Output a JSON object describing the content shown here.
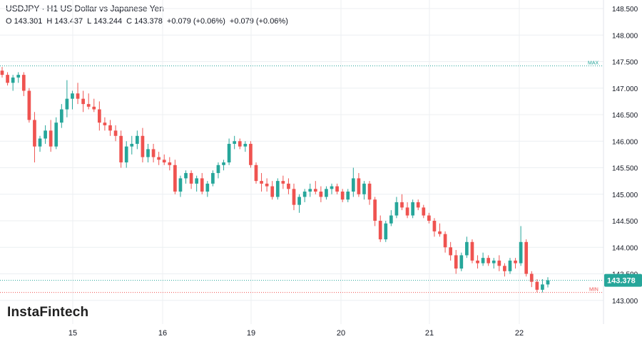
{
  "header": {
    "title": "USDJPY · H1 US Dollar vs Japanese Yen",
    "ohlc": {
      "o_label": "O",
      "o_value": "143.301",
      "h_label": "H",
      "h_value": "143.437",
      "l_label": "L",
      "l_value": "143.244",
      "c_label": "C",
      "c_value": "143.378",
      "change1": "+0.079 (+0.06%)",
      "change2": "+0.079 (+0.06%)"
    }
  },
  "branding": {
    "logo_text": "InstaFintech"
  },
  "colors": {
    "up": "#26a69a",
    "down": "#ef5350",
    "grid": "#eceff2",
    "max_line": "#26a69a",
    "min_line": "#ef5350",
    "price_tag": "#26a69a",
    "axis_text": "#131722"
  },
  "chart_data": {
    "type": "candlestick",
    "symbol": "USDJPY",
    "timeframe": "H1",
    "y_ticks": [
      "143.000",
      "143.500",
      "144.000",
      "144.500",
      "145.000",
      "145.500",
      "146.000",
      "146.500",
      "147.000",
      "147.500",
      "148.000",
      "148.500"
    ],
    "ylim": [
      142.95,
      148.6
    ],
    "x_ticks": [
      "15",
      "16",
      "19",
      "20",
      "21",
      "22"
    ],
    "last_price": "143.378",
    "max_label": "MAX",
    "max_value": 147.42,
    "min_label": "MIN",
    "min_value": 143.15,
    "grid": true,
    "candles_note": "O,H,L,C hourly, approximated from visual",
    "candles": [
      [
        147.33,
        147.4,
        147.2,
        147.25
      ],
      [
        147.25,
        147.3,
        147.05,
        147.1
      ],
      [
        147.1,
        147.25,
        146.95,
        147.2
      ],
      [
        147.2,
        147.3,
        147.1,
        147.25
      ],
      [
        147.25,
        147.3,
        146.85,
        146.95
      ],
      [
        146.95,
        147.0,
        146.35,
        146.4
      ],
      [
        146.4,
        146.55,
        145.6,
        145.9
      ],
      [
        145.9,
        146.1,
        145.8,
        146.05
      ],
      [
        146.05,
        146.3,
        145.95,
        146.2
      ],
      [
        146.2,
        146.4,
        145.8,
        145.9
      ],
      [
        145.9,
        146.45,
        145.85,
        146.35
      ],
      [
        146.35,
        146.7,
        146.25,
        146.6
      ],
      [
        146.6,
        147.15,
        146.45,
        146.8
      ],
      [
        146.8,
        146.95,
        146.6,
        146.9
      ],
      [
        146.9,
        147.1,
        146.7,
        146.8
      ],
      [
        146.8,
        146.95,
        146.55,
        146.7
      ],
      [
        146.7,
        146.9,
        146.6,
        146.65
      ],
      [
        146.65,
        146.8,
        146.55,
        146.6
      ],
      [
        146.6,
        146.75,
        146.2,
        146.35
      ],
      [
        146.35,
        146.45,
        146.2,
        146.3
      ],
      [
        146.3,
        146.4,
        146.1,
        146.2
      ],
      [
        146.2,
        146.3,
        146.0,
        146.1
      ],
      [
        146.1,
        146.2,
        145.5,
        145.6
      ],
      [
        145.6,
        146.0,
        145.5,
        145.9
      ],
      [
        145.9,
        146.1,
        145.75,
        145.95
      ],
      [
        145.95,
        146.2,
        145.85,
        146.1
      ],
      [
        146.1,
        146.25,
        145.6,
        145.7
      ],
      [
        145.7,
        145.95,
        145.6,
        145.85
      ],
      [
        145.85,
        145.95,
        145.6,
        145.7
      ],
      [
        145.7,
        145.8,
        145.55,
        145.65
      ],
      [
        145.65,
        145.75,
        145.55,
        145.6
      ],
      [
        145.6,
        145.7,
        145.45,
        145.55
      ],
      [
        145.55,
        145.65,
        145.0,
        145.05
      ],
      [
        145.05,
        145.35,
        144.95,
        145.3
      ],
      [
        145.3,
        145.45,
        145.2,
        145.4
      ],
      [
        145.4,
        145.45,
        145.1,
        145.2
      ],
      [
        145.2,
        145.35,
        145.05,
        145.3
      ],
      [
        145.3,
        145.4,
        145.0,
        145.05
      ],
      [
        145.05,
        145.25,
        144.95,
        145.2
      ],
      [
        145.2,
        145.45,
        145.15,
        145.4
      ],
      [
        145.4,
        145.6,
        145.3,
        145.55
      ],
      [
        145.55,
        145.65,
        145.45,
        145.6
      ],
      [
        145.6,
        146.05,
        145.55,
        145.95
      ],
      [
        145.95,
        146.1,
        145.85,
        146.0
      ],
      [
        146.0,
        146.05,
        145.85,
        145.9
      ],
      [
        145.9,
        146.0,
        145.8,
        145.95
      ],
      [
        145.95,
        146.0,
        145.5,
        145.55
      ],
      [
        145.55,
        145.6,
        145.2,
        145.25
      ],
      [
        145.25,
        145.4,
        145.05,
        145.2
      ],
      [
        145.2,
        145.3,
        145.05,
        145.15
      ],
      [
        145.15,
        145.25,
        144.9,
        144.95
      ],
      [
        144.95,
        145.3,
        144.9,
        145.25
      ],
      [
        145.25,
        145.35,
        145.1,
        145.2
      ],
      [
        145.2,
        145.3,
        145.0,
        145.1
      ],
      [
        145.1,
        145.2,
        144.7,
        144.8
      ],
      [
        144.8,
        145.0,
        144.65,
        144.95
      ],
      [
        144.95,
        145.1,
        144.85,
        145.05
      ],
      [
        145.05,
        145.2,
        144.95,
        145.1
      ],
      [
        145.1,
        145.25,
        145.0,
        145.05
      ],
      [
        145.05,
        145.15,
        144.85,
        144.95
      ],
      [
        144.95,
        145.15,
        144.9,
        145.1
      ],
      [
        145.1,
        145.2,
        145.0,
        145.15
      ],
      [
        145.15,
        145.2,
        145.0,
        145.05
      ],
      [
        145.05,
        145.1,
        144.85,
        144.9
      ],
      [
        144.9,
        145.1,
        144.85,
        145.05
      ],
      [
        145.05,
        145.5,
        144.95,
        145.3
      ],
      [
        145.3,
        145.4,
        144.95,
        145.0
      ],
      [
        145.0,
        145.25,
        144.9,
        145.2
      ],
      [
        145.2,
        145.25,
        144.8,
        144.9
      ],
      [
        144.9,
        144.95,
        144.4,
        144.5
      ],
      [
        144.5,
        144.6,
        144.1,
        144.15
      ],
      [
        144.15,
        144.5,
        144.1,
        144.45
      ],
      [
        144.45,
        144.7,
        144.4,
        144.6
      ],
      [
        144.6,
        144.95,
        144.55,
        144.85
      ],
      [
        144.85,
        145.0,
        144.7,
        144.75
      ],
      [
        144.75,
        144.85,
        144.55,
        144.6
      ],
      [
        144.6,
        144.9,
        144.55,
        144.85
      ],
      [
        144.85,
        144.9,
        144.7,
        144.75
      ],
      [
        144.75,
        144.8,
        144.55,
        144.6
      ],
      [
        144.6,
        144.65,
        144.45,
        144.5
      ],
      [
        144.5,
        144.55,
        144.2,
        144.3
      ],
      [
        144.3,
        144.45,
        144.2,
        144.25
      ],
      [
        144.25,
        144.3,
        143.9,
        144.0
      ],
      [
        144.0,
        144.1,
        143.75,
        143.85
      ],
      [
        143.85,
        143.95,
        143.5,
        143.6
      ],
      [
        143.6,
        143.9,
        143.55,
        143.85
      ],
      [
        143.85,
        144.2,
        143.8,
        144.1
      ],
      [
        144.1,
        144.15,
        143.7,
        143.75
      ],
      [
        143.75,
        143.85,
        143.6,
        143.7
      ],
      [
        143.7,
        143.9,
        143.65,
        143.8
      ],
      [
        143.8,
        143.85,
        143.65,
        143.7
      ],
      [
        143.7,
        143.8,
        143.6,
        143.75
      ],
      [
        143.75,
        143.85,
        143.55,
        143.65
      ],
      [
        143.65,
        143.7,
        143.45,
        143.55
      ],
      [
        143.55,
        143.8,
        143.5,
        143.75
      ],
      [
        143.75,
        143.8,
        143.6,
        143.7
      ],
      [
        143.7,
        144.4,
        143.65,
        144.1
      ],
      [
        144.1,
        144.15,
        143.45,
        143.5
      ],
      [
        143.5,
        143.55,
        143.25,
        143.35
      ],
      [
        143.35,
        143.4,
        143.15,
        143.2
      ],
      [
        143.2,
        143.4,
        143.15,
        143.3
      ],
      [
        143.3,
        143.437,
        143.244,
        143.378
      ]
    ]
  }
}
